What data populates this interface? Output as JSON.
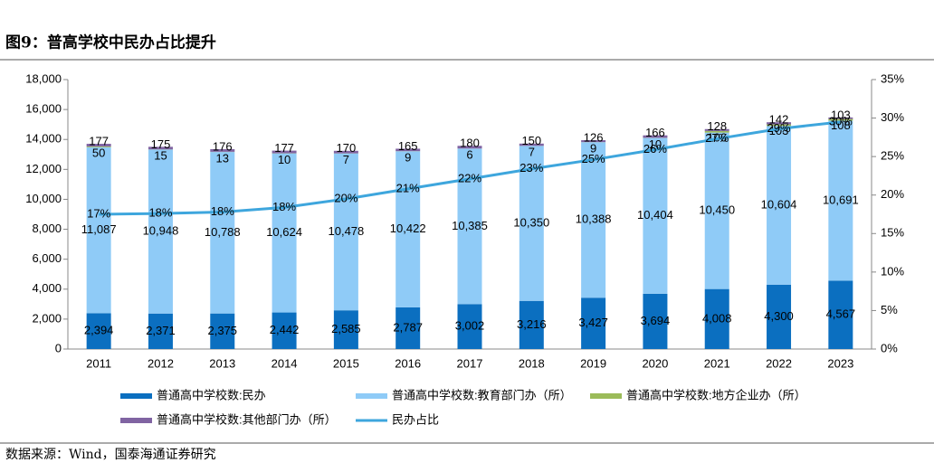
{
  "title": "图9：普高学校中民办占比提升",
  "source": "数据来源：Wind，国泰海通证券研究",
  "chart_data": {
    "type": "bar",
    "stacked": true,
    "categories": [
      "2011",
      "2012",
      "2013",
      "2014",
      "2015",
      "2016",
      "2017",
      "2018",
      "2019",
      "2020",
      "2021",
      "2022",
      "2023"
    ],
    "ylim": [
      0,
      18000
    ],
    "yticks": [
      0,
      {
        "value": 2000,
        "label": "2,000"
      },
      {
        "value": 4000,
        "label": "4,000"
      },
      {
        "value": 6000,
        "label": "6,000"
      },
      {
        "value": 8000,
        "label": "8,000"
      },
      {
        "value": 10000,
        "label": "10,000"
      },
      {
        "value": 12000,
        "label": "12,000"
      },
      {
        "value": 14000,
        "label": "14,000"
      },
      {
        "value": 16000,
        "label": "16,000"
      },
      {
        "value": 18000,
        "label": "18,000"
      }
    ],
    "y2lim": [
      0,
      35
    ],
    "y2ticks": [
      {
        "value": 0,
        "label": "0%"
      },
      {
        "value": 5,
        "label": "5%"
      },
      {
        "value": 10,
        "label": "10%"
      },
      {
        "value": 15,
        "label": "15%"
      },
      {
        "value": 20,
        "label": "20%"
      },
      {
        "value": 25,
        "label": "25%"
      },
      {
        "value": 30,
        "label": "30%"
      },
      {
        "value": 35,
        "label": "35%"
      }
    ],
    "series": [
      {
        "name": "普通高中学校数:民办",
        "color": "#0b6fc0",
        "values": [
          2394,
          2371,
          2375,
          2442,
          2585,
          2787,
          3002,
          3216,
          3427,
          3694,
          4008,
          4300,
          4567
        ],
        "value_labels": [
          "2,394",
          "2,371",
          "2,375",
          "2,442",
          "2,585",
          "2,787",
          "3,002",
          "3,216",
          "3,427",
          "3,694",
          "4,008",
          "4,300",
          "4,567"
        ]
      },
      {
        "name": "普通高中学校数:教育部门办（所）",
        "color": "#8fcbf7",
        "values": [
          11087,
          10948,
          10788,
          10624,
          10478,
          10422,
          10385,
          10350,
          10388,
          10404,
          10450,
          10604,
          10691
        ],
        "value_labels": [
          "11,087",
          "10,948",
          "10,788",
          "10,624",
          "10,478",
          "10,422",
          "10,385",
          "10,350",
          "10,388",
          "10,404",
          "10,450",
          "10,604",
          "10,691"
        ]
      },
      {
        "name": "普通高中学校数:地方企业办（所）",
        "color": "#9bbb59",
        "values": [
          50,
          15,
          13,
          10,
          7,
          9,
          6,
          7,
          9,
          10,
          106,
          103,
          108
        ]
      },
      {
        "name": "普通高中学校数:其他部门办（所）",
        "color": "#8064a2",
        "values": [
          177,
          175,
          176,
          177,
          170,
          165,
          180,
          150,
          126,
          166,
          128,
          142,
          103
        ]
      },
      {
        "name": "民办占比",
        "color": "#3ea6dd",
        "type": "line",
        "axis": "y2",
        "values": [
          17.5,
          17.6,
          17.8,
          18.4,
          19.5,
          20.8,
          22.1,
          23.4,
          24.6,
          25.9,
          27.3,
          28.6,
          29.5
        ],
        "value_labels": [
          "17%",
          "18%",
          "18%",
          "18%",
          "20%",
          "21%",
          "22%",
          "23%",
          "25%",
          "26%",
          "27%",
          "29%",
          "30%"
        ]
      }
    ],
    "grid": false
  }
}
